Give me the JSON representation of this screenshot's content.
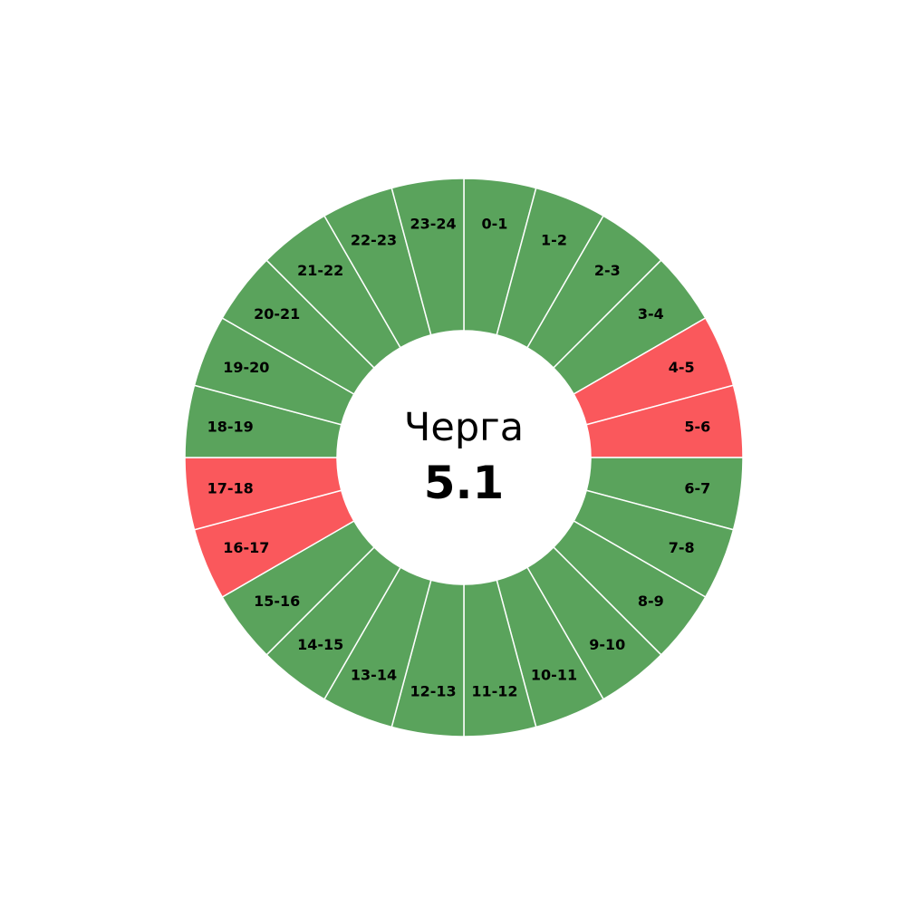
{
  "chart_data": {
    "type": "pie",
    "subtype": "donut",
    "center_title": "Черга",
    "center_value": "5.1",
    "categories": [
      "0-1",
      "1-2",
      "2-3",
      "3-4",
      "4-5",
      "5-6",
      "6-7",
      "7-8",
      "8-9",
      "9-10",
      "10-11",
      "11-12",
      "12-13",
      "13-14",
      "14-15",
      "15-16",
      "16-17",
      "17-18",
      "18-19",
      "19-20",
      "20-21",
      "21-22",
      "22-23",
      "23-24"
    ],
    "values": [
      1,
      1,
      1,
      1,
      1,
      1,
      1,
      1,
      1,
      1,
      1,
      1,
      1,
      1,
      1,
      1,
      1,
      1,
      1,
      1,
      1,
      1,
      1,
      1
    ],
    "status": [
      "on",
      "on",
      "on",
      "on",
      "off",
      "off",
      "on",
      "on",
      "on",
      "on",
      "on",
      "on",
      "on",
      "on",
      "on",
      "on",
      "off",
      "off",
      "on",
      "on",
      "on",
      "on",
      "on",
      "on"
    ],
    "colors": {
      "on": "#5aa35c",
      "off": "#fa585c",
      "separator": "#ffffff"
    },
    "legend": false
  }
}
